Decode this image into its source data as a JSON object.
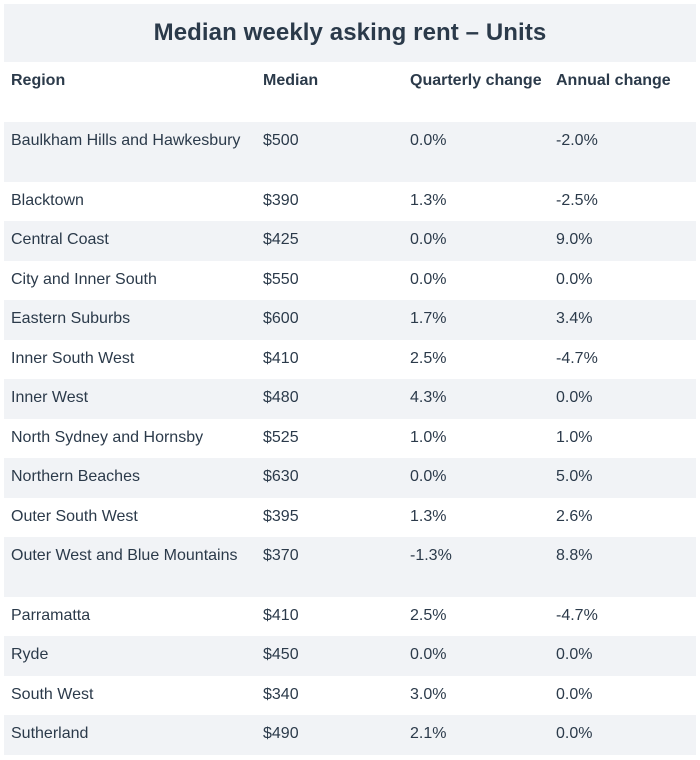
{
  "chart_data": {
    "type": "table",
    "title": "Median weekly asking rent – Units",
    "columns": [
      "Region",
      "Median",
      "Quarterly change",
      "Annual change"
    ],
    "rows": [
      [
        "Baulkham Hills and Hawkesbury",
        "$500",
        "0.0%",
        "-2.0%"
      ],
      [
        "Blacktown",
        "$390",
        "1.3%",
        "-2.5%"
      ],
      [
        "Central Coast",
        "$425",
        "0.0%",
        "9.0%"
      ],
      [
        "City and Inner South",
        "$550",
        "0.0%",
        "0.0%"
      ],
      [
        "Eastern Suburbs",
        "$600",
        "1.7%",
        "3.4%"
      ],
      [
        "Inner South West",
        "$410",
        "2.5%",
        "-4.7%"
      ],
      [
        "Inner West",
        "$480",
        "4.3%",
        "0.0%"
      ],
      [
        "North Sydney and Hornsby",
        "$525",
        "1.0%",
        "1.0%"
      ],
      [
        "Northern Beaches",
        "$630",
        "0.0%",
        "5.0%"
      ],
      [
        "Outer South West",
        "$395",
        "1.3%",
        "2.6%"
      ],
      [
        "Outer West and Blue Mountains",
        "$370",
        "-1.3%",
        "8.8%"
      ],
      [
        "Parramatta",
        "$410",
        "2.5%",
        "-4.7%"
      ],
      [
        "Ryde",
        "$450",
        "0.0%",
        "0.0%"
      ],
      [
        "South West",
        "$340",
        "3.0%",
        "0.0%"
      ],
      [
        "Sutherland",
        "$490",
        "2.1%",
        "0.0%"
      ]
    ]
  },
  "colors": {
    "text": "#2b3a4a",
    "stripe": "#f1f3f6",
    "background": "#ffffff"
  }
}
